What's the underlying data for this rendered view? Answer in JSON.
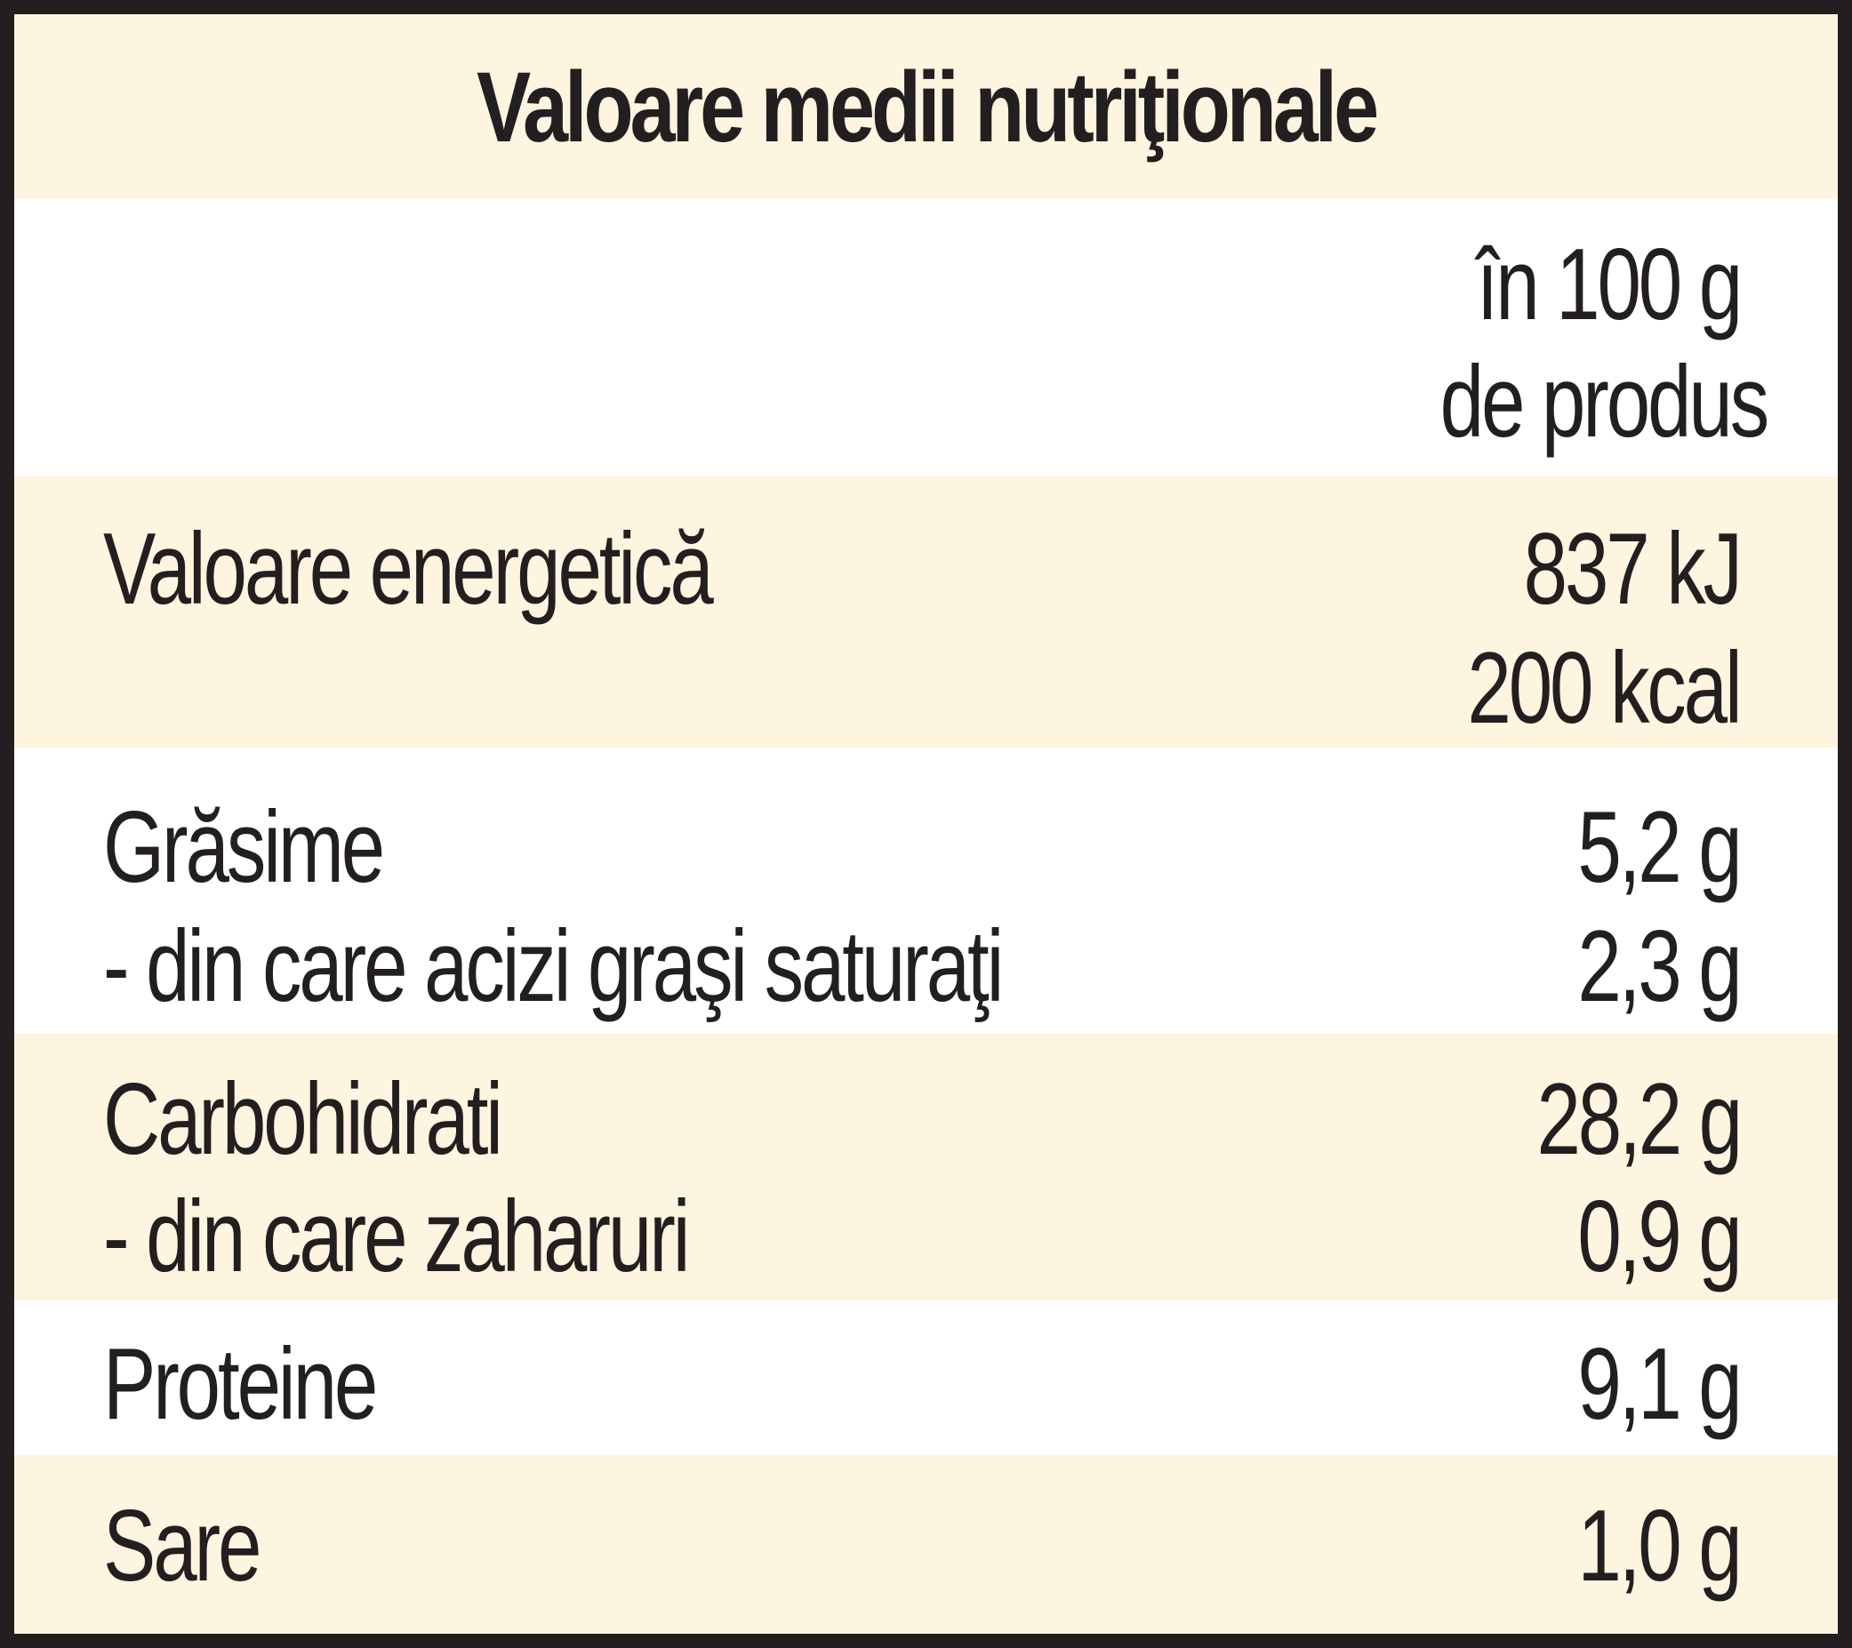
{
  "title": "Valoare medii nutriţionale",
  "column_header": {
    "line1": "în 100 g",
    "line2": "de produs"
  },
  "rows": [
    {
      "lines": [
        {
          "label": "Valoare energetică",
          "value": "837 kJ"
        },
        {
          "label": "",
          "value": "200 kcal"
        }
      ]
    },
    {
      "lines": [
        {
          "label": "Grăsime",
          "value": "5,2 g"
        },
        {
          "label": "- din care acizi graşi saturaţi",
          "value": "2,3 g"
        }
      ]
    },
    {
      "lines": [
        {
          "label": "Carbohidrati",
          "value": "28,2 g"
        },
        {
          "label": "- din care zaharuri",
          "value": "0,9 g"
        }
      ]
    },
    {
      "lines": [
        {
          "label": "Proteine",
          "value": "9,1 g"
        }
      ]
    },
    {
      "lines": [
        {
          "label": "Sare",
          "value": "1,0 g"
        }
      ]
    }
  ],
  "colors": {
    "cream": "#fdf5df",
    "border": "#231f20",
    "text": "#231f20"
  }
}
